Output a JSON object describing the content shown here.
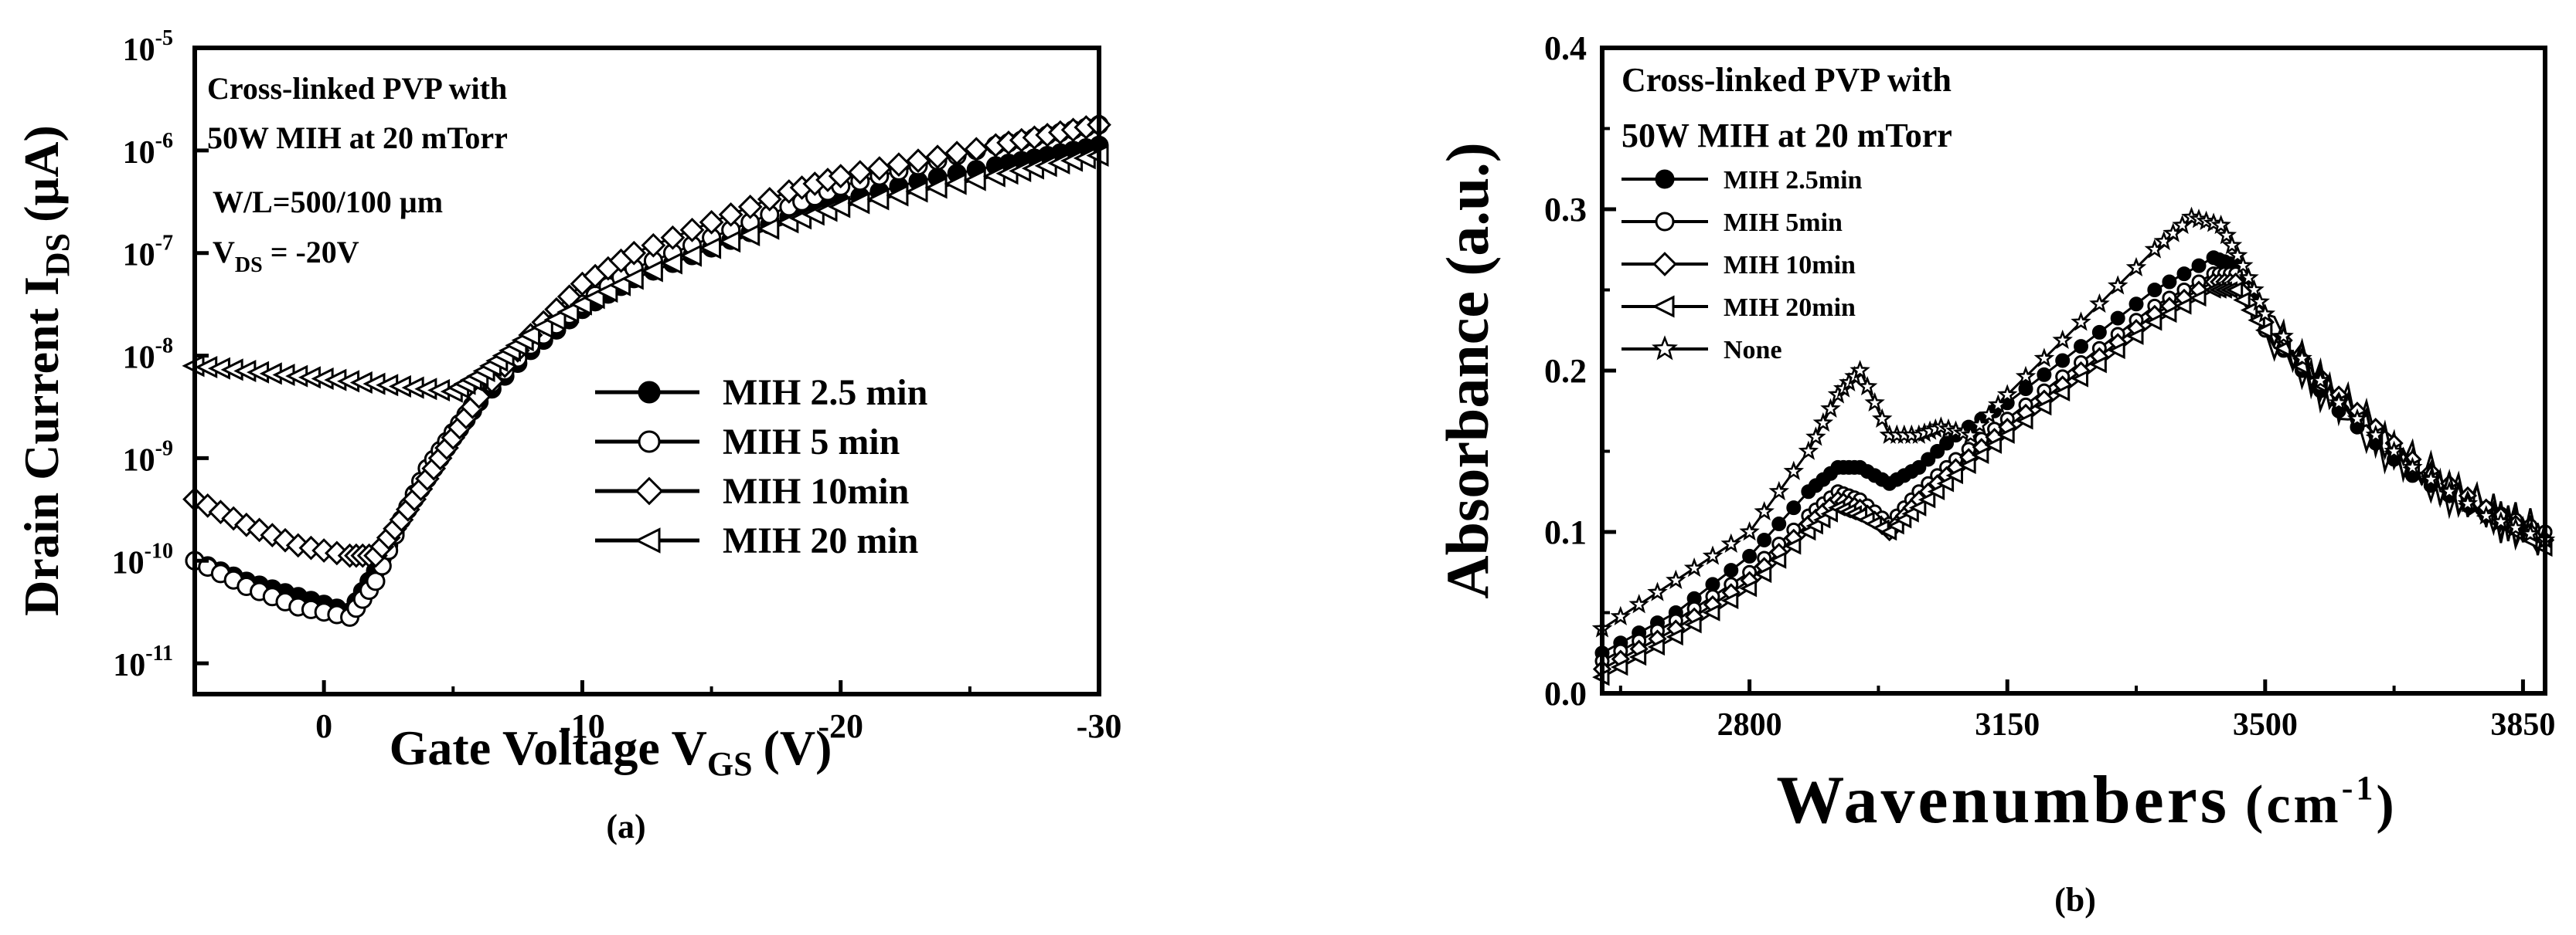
{
  "chart_data": [
    {
      "type": "line",
      "panel_label": "(a)",
      "y_scale": "log",
      "ylabel": "Drain Current I",
      "ylabel_sub": "DS",
      "ylabel_unit": "(µA)",
      "xlabel": "Gate Voltage V",
      "xlabel_sub": "GS",
      "xlabel_unit": "(V)",
      "xlim": [
        5,
        -30
      ],
      "ylim_exp": [
        -11.3,
        -5
      ],
      "x_ticks": [
        0,
        -10,
        -20,
        -30
      ],
      "x_tick_labels": [
        "0",
        "-10",
        "-20",
        "-30"
      ],
      "y_tick_exponents": [
        -5,
        -6,
        -7,
        -8,
        -9,
        -10,
        -11
      ],
      "y_tick_labels": [
        "-5",
        "-6",
        "-7",
        "-8",
        "-9",
        "-10",
        "-11"
      ],
      "y_tick_base": "10",
      "annotation_lines": [
        "Cross-linked PVP with",
        "50W MIH at 20 mTorr",
        "W/L=500/100 µm"
      ],
      "annotation_vds": {
        "main": "V",
        "sub": "DS",
        "rest": " = -20V"
      },
      "series": [
        {
          "name": "MIH 2.5 min",
          "marker": "circle-filled",
          "x": [
            5,
            3,
            1,
            -1,
            -2,
            -3,
            -4,
            -5,
            -6,
            -8,
            -10,
            -12,
            -15,
            -18,
            -20,
            -23,
            -26,
            -28,
            -30
          ],
          "log_y": [
            -10,
            -10.2,
            -10.35,
            -10.5,
            -10.1,
            -9.6,
            -9.2,
            -8.8,
            -8.45,
            -7.95,
            -7.55,
            -7.25,
            -6.95,
            -6.65,
            -6.5,
            -6.3,
            -6.15,
            -6.05,
            -5.95
          ]
        },
        {
          "name": "MIH 5 min",
          "marker": "circle-open",
          "x": [
            5,
            3,
            1,
            -1,
            -2,
            -3,
            -4,
            -5,
            -6,
            -8,
            -10,
            -12,
            -15,
            -18,
            -20,
            -23,
            -26,
            -28,
            -30
          ],
          "log_y": [
            -10,
            -10.25,
            -10.45,
            -10.55,
            -10.2,
            -9.6,
            -9.1,
            -8.75,
            -8.4,
            -7.9,
            -7.5,
            -7.15,
            -6.85,
            -6.55,
            -6.35,
            -6.15,
            -5.95,
            -5.85,
            -5.75
          ]
        },
        {
          "name": "MIH 10min",
          "marker": "diamond-open",
          "x": [
            5,
            3,
            1,
            -1,
            -2,
            -3,
            -4,
            -5,
            -6,
            -8,
            -10,
            -12,
            -15,
            -18,
            -20,
            -23,
            -26,
            -28,
            -30
          ],
          "log_y": [
            -9.4,
            -9.65,
            -9.85,
            -9.95,
            -9.95,
            -9.6,
            -9.2,
            -8.8,
            -8.4,
            -7.8,
            -7.3,
            -7,
            -6.7,
            -6.4,
            -6.25,
            -6.1,
            -5.95,
            -5.85,
            -5.75
          ]
        },
        {
          "name": "MIH 20 min",
          "marker": "triangle-left-open",
          "x": [
            5,
            3,
            1,
            -1,
            -3,
            -5,
            -6,
            -7,
            -8,
            -10,
            -12,
            -15,
            -18,
            -20,
            -23,
            -26,
            -28,
            -30
          ],
          "log_y": [
            -8.1,
            -8.15,
            -8.2,
            -8.25,
            -8.3,
            -8.35,
            -8.2,
            -8,
            -7.8,
            -7.5,
            -7.25,
            -6.95,
            -6.7,
            -6.55,
            -6.4,
            -6.25,
            -6.15,
            -6.05
          ]
        }
      ],
      "legend_position": "center-right"
    },
    {
      "type": "line",
      "panel_label": "(b)",
      "ylabel": "Absorbance (a.u.)",
      "xlabel": "Wavenumbers",
      "xlabel_unit_base": "(cm",
      "xlabel_unit_sup": "-1",
      "xlabel_unit_close": ")",
      "xlim": [
        2600,
        3880
      ],
      "ylim": [
        0,
        0.4
      ],
      "x_ticks": [
        2800,
        3150,
        3500,
        3850
      ],
      "x_tick_labels": [
        "2800",
        "3150",
        "3500",
        "3850"
      ],
      "y_ticks": [
        0,
        0.1,
        0.2,
        0.3,
        0.4
      ],
      "y_tick_labels": [
        "0.0",
        "0.1",
        "0.2",
        "0.3",
        "0.4"
      ],
      "annotation_lines": [
        "Cross-linked PVP with",
        "50W MIH at 20 mTorr"
      ],
      "series": [
        {
          "name": "MIH 2.5min",
          "marker": "circle-filled",
          "x": [
            2600,
            2700,
            2800,
            2880,
            2920,
            2950,
            2990,
            3030,
            3080,
            3150,
            3250,
            3350,
            3430,
            3460,
            3500,
            3600,
            3700,
            3800,
            3880
          ],
          "y": [
            0.025,
            0.05,
            0.085,
            0.125,
            0.14,
            0.14,
            0.13,
            0.14,
            0.16,
            0.18,
            0.215,
            0.25,
            0.27,
            0.265,
            0.225,
            0.175,
            0.135,
            0.11,
            0.1
          ]
        },
        {
          "name": "MIH 5min",
          "marker": "circle-open",
          "x": [
            2600,
            2700,
            2800,
            2880,
            2920,
            2950,
            2990,
            3030,
            3080,
            3150,
            3250,
            3350,
            3430,
            3460,
            3500,
            3600,
            3700,
            3800,
            3880
          ],
          "y": [
            0.02,
            0.045,
            0.075,
            0.11,
            0.125,
            0.12,
            0.105,
            0.125,
            0.145,
            0.17,
            0.205,
            0.24,
            0.26,
            0.26,
            0.225,
            0.18,
            0.14,
            0.115,
            0.1
          ]
        },
        {
          "name": "MIH 10min",
          "marker": "diamond-open",
          "x": [
            2600,
            2700,
            2800,
            2880,
            2920,
            2950,
            2990,
            3030,
            3080,
            3150,
            3250,
            3350,
            3430,
            3460,
            3500,
            3600,
            3700,
            3800,
            3880
          ],
          "y": [
            0.015,
            0.04,
            0.07,
            0.105,
            0.12,
            0.115,
            0.1,
            0.12,
            0.14,
            0.165,
            0.2,
            0.235,
            0.255,
            0.255,
            0.23,
            0.185,
            0.145,
            0.115,
            0.095
          ]
        },
        {
          "name": "MIH 20min",
          "marker": "triangle-left-open",
          "x": [
            2600,
            2700,
            2800,
            2880,
            2920,
            2950,
            2990,
            3030,
            3080,
            3150,
            3250,
            3350,
            3430,
            3460,
            3500,
            3600,
            3700,
            3800,
            3880
          ],
          "y": [
            0.01,
            0.035,
            0.065,
            0.1,
            0.115,
            0.11,
            0.1,
            0.115,
            0.135,
            0.16,
            0.195,
            0.23,
            0.25,
            0.25,
            0.225,
            0.18,
            0.14,
            0.11,
            0.09
          ]
        },
        {
          "name": "None",
          "marker": "star-open",
          "x": [
            2600,
            2700,
            2800,
            2880,
            2920,
            2950,
            2990,
            3030,
            3060,
            3100,
            3150,
            3250,
            3350,
            3400,
            3440,
            3470,
            3500,
            3600,
            3700,
            3800,
            3880
          ],
          "y": [
            0.04,
            0.07,
            0.1,
            0.15,
            0.185,
            0.2,
            0.16,
            0.16,
            0.165,
            0.16,
            0.185,
            0.23,
            0.275,
            0.295,
            0.29,
            0.265,
            0.235,
            0.18,
            0.14,
            0.11,
            0.095
          ]
        }
      ],
      "legend_position": "top-left"
    }
  ]
}
